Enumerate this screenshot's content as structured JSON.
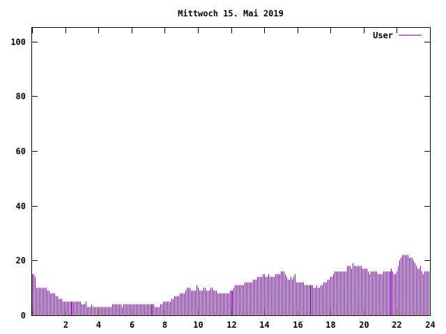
{
  "chart_data": {
    "type": "bar",
    "title": "Mittwoch 15. Mai 2019",
    "xlabel": "",
    "ylabel": "",
    "xlim": [
      0,
      24
    ],
    "ylim": [
      0,
      105
    ],
    "x_ticks": [
      0,
      2,
      4,
      6,
      8,
      10,
      12,
      14,
      16,
      18,
      20,
      22,
      24
    ],
    "x_tick_labels": [
      "",
      "2",
      "4",
      "6",
      "8",
      "10",
      "12",
      "14",
      "16",
      "18",
      "20",
      "22",
      "24"
    ],
    "y_ticks": [
      0,
      20,
      40,
      60,
      80,
      100
    ],
    "y_tick_labels": [
      "0",
      "20",
      "40",
      "60",
      "80",
      "100"
    ],
    "grid": false,
    "legend_position": "top-right",
    "colors": {
      "series": "#9400d3",
      "axis": "#000000",
      "background": "#ffffff"
    },
    "series": [
      {
        "name": "User",
        "sample_interval_minutes": 5,
        "values": [
          15,
          15,
          14,
          10,
          10,
          10,
          10,
          10,
          10,
          10,
          10,
          9,
          9,
          8,
          8,
          8,
          8,
          7,
          7,
          6,
          6,
          6,
          5,
          5,
          5,
          5,
          5,
          5,
          5,
          5,
          5,
          5,
          5,
          5,
          5,
          5,
          4,
          4,
          4,
          5,
          3,
          3,
          3,
          4,
          3,
          3,
          3,
          3,
          3,
          3,
          3,
          3,
          3,
          3,
          3,
          3,
          3,
          3,
          4,
          4,
          4,
          4,
          4,
          4,
          4,
          3,
          4,
          4,
          4,
          4,
          4,
          4,
          4,
          4,
          4,
          4,
          4,
          4,
          4,
          4,
          4,
          4,
          4,
          4,
          4,
          4,
          4,
          4,
          4,
          3,
          3,
          3,
          3,
          4,
          4,
          5,
          5,
          5,
          5,
          5,
          5,
          6,
          6,
          7,
          7,
          7,
          7,
          8,
          8,
          8,
          8,
          9,
          10,
          10,
          10,
          9,
          9,
          9,
          9,
          11,
          10,
          9,
          9,
          9,
          10,
          10,
          9,
          9,
          9,
          10,
          10,
          9,
          9,
          9,
          8,
          8,
          8,
          8,
          8,
          8,
          8,
          8,
          8,
          9,
          9,
          9,
          10,
          11,
          11,
          11,
          11,
          11,
          11,
          11,
          12,
          12,
          12,
          12,
          12,
          12,
          13,
          13,
          13,
          14,
          14,
          14,
          14,
          15,
          15,
          14,
          14,
          15,
          14,
          14,
          14,
          14,
          15,
          15,
          15,
          15,
          16,
          16,
          16,
          15,
          14,
          13,
          13,
          14,
          13,
          14,
          15,
          12,
          12,
          12,
          12,
          12,
          12,
          11,
          11,
          11,
          11,
          11,
          11,
          11,
          10,
          10,
          11,
          10,
          10,
          11,
          11,
          12,
          12,
          12,
          13,
          13,
          14,
          14,
          15,
          16,
          16,
          16,
          16,
          16,
          16,
          16,
          16,
          16,
          18,
          18,
          18,
          17,
          19,
          18,
          18,
          18,
          18,
          18,
          18,
          17,
          17,
          17,
          17,
          16,
          15,
          16,
          16,
          16,
          16,
          16,
          15,
          15,
          15,
          15,
          16,
          16,
          16,
          16,
          16,
          16,
          17,
          16,
          15,
          15,
          16,
          18,
          20,
          21,
          22,
          22,
          22,
          22,
          22,
          21,
          21,
          21,
          20,
          19,
          18,
          17,
          17,
          18,
          16,
          15,
          16,
          16,
          16,
          16,
          15
        ]
      }
    ]
  }
}
